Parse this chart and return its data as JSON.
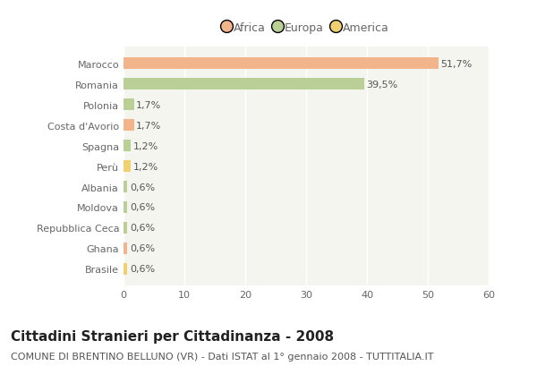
{
  "categories": [
    "Marocco",
    "Romania",
    "Polonia",
    "Costa d'Avorio",
    "Spagna",
    "Perù",
    "Albania",
    "Moldova",
    "Repubblica Ceca",
    "Ghana",
    "Brasile"
  ],
  "values": [
    51.7,
    39.5,
    1.7,
    1.7,
    1.2,
    1.2,
    0.6,
    0.6,
    0.6,
    0.6,
    0.6
  ],
  "labels": [
    "51,7%",
    "39,5%",
    "1,7%",
    "1,7%",
    "1,2%",
    "1,2%",
    "0,6%",
    "0,6%",
    "0,6%",
    "0,6%",
    "0,6%"
  ],
  "colors": [
    "#F2B48A",
    "#BACF96",
    "#BACF96",
    "#F2B48A",
    "#BACF96",
    "#F0D070",
    "#BACF96",
    "#BACF96",
    "#BACF96",
    "#F2B48A",
    "#F0D070"
  ],
  "legend_labels": [
    "Africa",
    "Europa",
    "America"
  ],
  "legend_colors": [
    "#F2B48A",
    "#BACF96",
    "#F0D070"
  ],
  "title": "Cittadini Stranieri per Cittadinanza - 2008",
  "subtitle": "COMUNE DI BRENTINO BELLUNO (VR) - Dati ISTAT al 1° gennaio 2008 - TUTTITALIA.IT",
  "xlim": [
    0,
    60
  ],
  "xticks": [
    0,
    10,
    20,
    30,
    40,
    50,
    60
  ],
  "bg_color": "#FFFFFF",
  "plot_bg_color": "#F5F5F0",
  "grid_color": "#FFFFFF",
  "title_fontsize": 11,
  "subtitle_fontsize": 8,
  "label_fontsize": 8,
  "tick_fontsize": 8,
  "bar_height": 0.55
}
